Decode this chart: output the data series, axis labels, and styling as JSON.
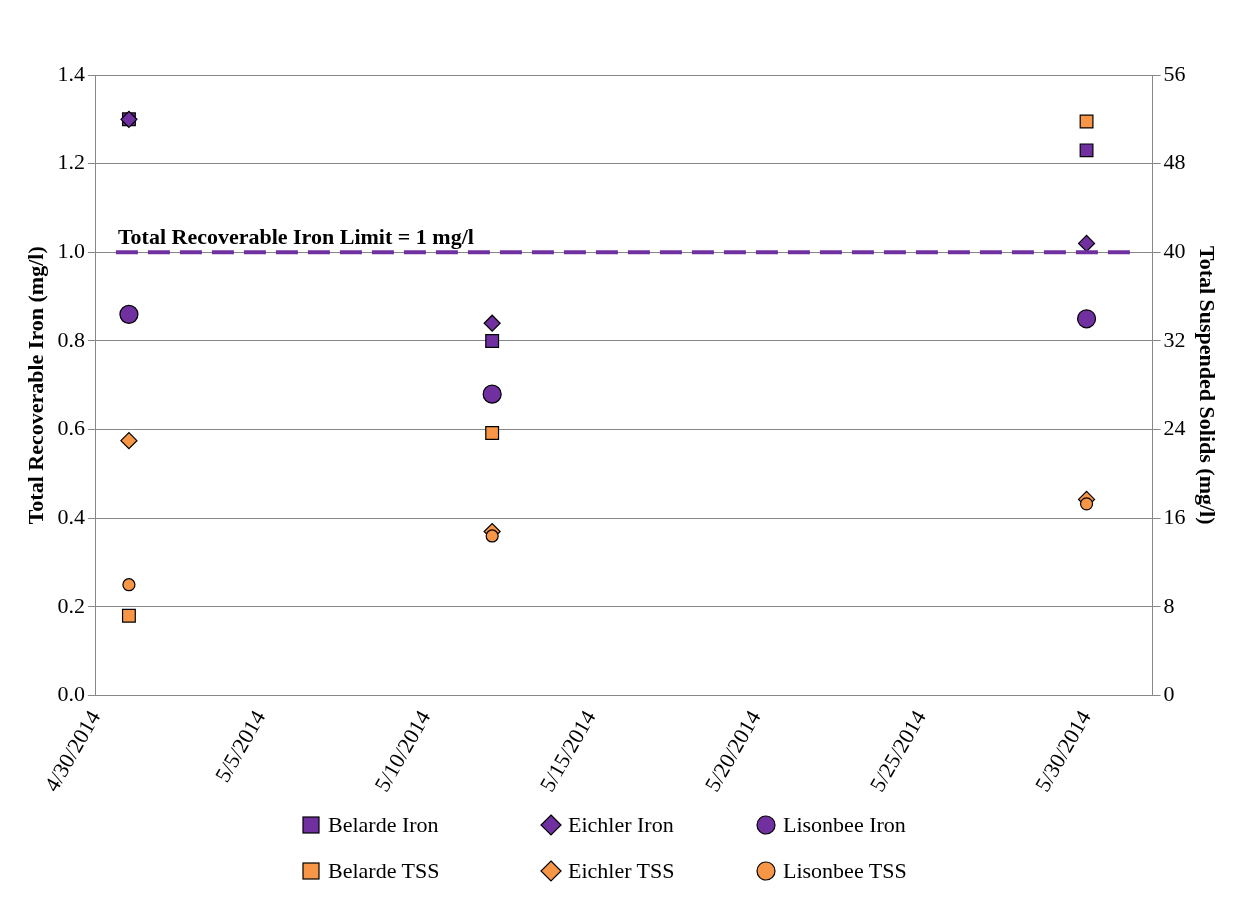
{
  "chart_data": {
    "type": "scatter",
    "xlabel": null,
    "ylabel": "Total Recoverable Iron (mg/l)",
    "y2label": "Total Suspended Solids (mg/l)",
    "xlim": [
      "2014-04-30",
      "2014-06-01"
    ],
    "xticks": [
      {
        "value": "2014-04-30",
        "label": "4/30/2014"
      },
      {
        "value": "2014-05-05",
        "label": "5/5/2014"
      },
      {
        "value": "2014-05-10",
        "label": "5/10/2014"
      },
      {
        "value": "2014-05-15",
        "label": "5/15/2014"
      },
      {
        "value": "2014-05-20",
        "label": "5/20/2014"
      },
      {
        "value": "2014-05-25",
        "label": "5/25/2014"
      },
      {
        "value": "2014-05-30",
        "label": "5/30/2014"
      }
    ],
    "ylim": [
      0,
      1.4
    ],
    "yticks": [
      {
        "value": 0,
        "label": "0.0"
      },
      {
        "value": 0.2,
        "label": "0.2"
      },
      {
        "value": 0.4,
        "label": "0.4"
      },
      {
        "value": 0.6,
        "label": "0.6"
      },
      {
        "value": 0.8,
        "label": "0.8"
      },
      {
        "value": 1,
        "label": "1.0"
      },
      {
        "value": 1.2,
        "label": "1.2"
      },
      {
        "value": 1.4,
        "label": "1.4"
      }
    ],
    "y2lim": [
      0,
      56
    ],
    "y2ticks": [
      0,
      8,
      16,
      24,
      32,
      40,
      48,
      56
    ],
    "x": [
      "2014-05-01",
      "2014-05-12",
      "2014-05-30"
    ],
    "series": [
      {
        "name": "Belarde Iron",
        "color": "#7030a0",
        "marker": "square",
        "values": [
          1.3,
          0.8,
          1.23
        ]
      },
      {
        "name": "Eichler Iron",
        "color": "#7030a0",
        "marker": "diamond",
        "values": [
          1.3,
          0.84,
          1.02
        ]
      },
      {
        "name": "Lisonbee Iron",
        "color": "#7030a0",
        "marker": "circle",
        "values": [
          0.86,
          0.68,
          0.85
        ]
      },
      {
        "name": "Belarde TSS",
        "color": "#f79646",
        "marker": "square",
        "axis": "y2",
        "values": [
          7.2,
          23.7,
          51.8
        ]
      },
      {
        "name": "Eichler TSS",
        "color": "#f79646",
        "marker": "diamond",
        "axis": "y2",
        "values": [
          23.0,
          14.8,
          17.7
        ]
      },
      {
        "name": "Lisonbee TSS",
        "color": "#f79646",
        "marker": "circle",
        "axis": "y2",
        "values": [
          10.0,
          14.4,
          17.3
        ]
      }
    ],
    "ref_lines": [
      {
        "axis": "y",
        "value": 1,
        "label": "Total Recoverable Iron Limit = 1 mg/l",
        "color": "#7030a0",
        "line_style": "dashed"
      }
    ],
    "grid": "y",
    "legend": "bottom"
  }
}
